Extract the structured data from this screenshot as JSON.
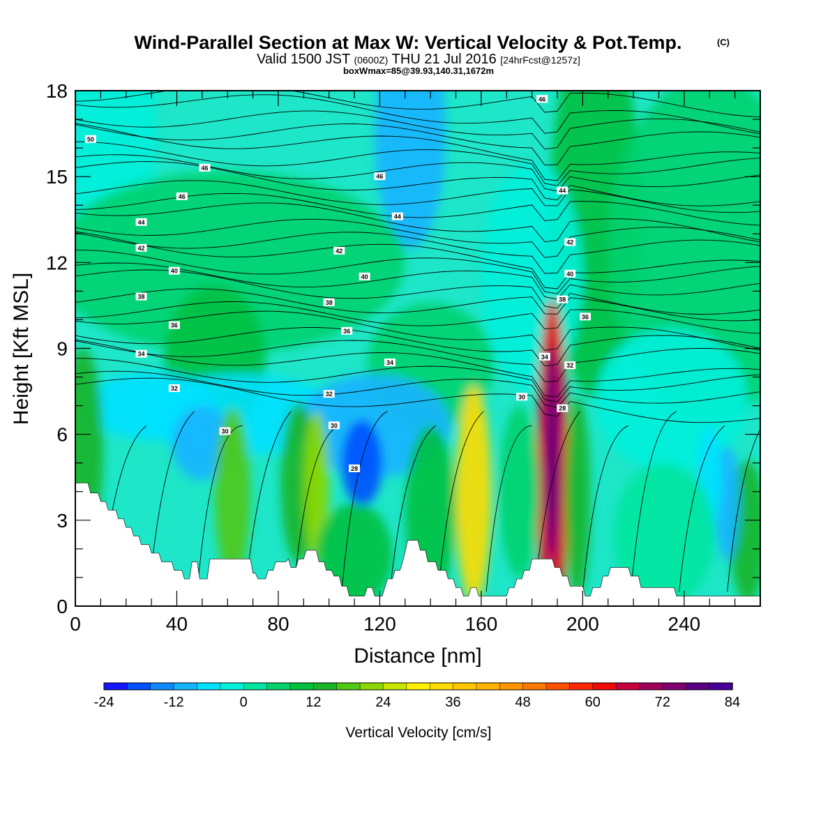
{
  "chart_data": {
    "type": "heatmap",
    "title": "Wind-Parallel Section at Max W: Vertical Velocity & Pot.Temp.",
    "title_mark": "(C)",
    "subtitle_valid_a": "Valid 1500 JST",
    "subtitle_valid_b": "(0600Z)",
    "subtitle_valid_c": "THU 21 Jul 2016",
    "subtitle_valid_d": "[24hrFcst@1257z]",
    "subtitle_box": "boxWmax=85@39.93,140.31,1672m",
    "xlabel": "Distance [nm]",
    "ylabel": "Height [Kft MSL]",
    "xlim": [
      0,
      270
    ],
    "ylim": [
      0,
      18
    ],
    "x_ticks": [
      "0",
      "40",
      "80",
      "120",
      "160",
      "200",
      "240"
    ],
    "y_ticks": [
      "0",
      "3",
      "6",
      "9",
      "12",
      "15",
      "18"
    ],
    "colorbar": {
      "title": "Vertical Velocity [cm/s]",
      "range": [
        -24,
        84
      ],
      "step": 4,
      "tick_labels": [
        "-24",
        "-12",
        "0",
        "12",
        "24",
        "36",
        "48",
        "60",
        "72",
        "84"
      ],
      "colors": [
        "#1414ff",
        "#0050ff",
        "#0f87ff",
        "#14b4ff",
        "#00e1ff",
        "#00f0dc",
        "#00e6a0",
        "#00d26e",
        "#00c040",
        "#19b428",
        "#50c814",
        "#8cd700",
        "#c8e600",
        "#fff000",
        "#ffdc00",
        "#ffc800",
        "#ffb400",
        "#ff9600",
        "#ff7800",
        "#ff5000",
        "#ff2800",
        "#f00a0a",
        "#c8003c",
        "#a0005a",
        "#82006e",
        "#5a0082",
        "#460096"
      ]
    },
    "contour_labels": [
      {
        "x": 6,
        "y": 16.3,
        "text": "50"
      },
      {
        "x": 51,
        "y": 15.3,
        "text": "46"
      },
      {
        "x": 42,
        "y": 14.3,
        "text": "46"
      },
      {
        "x": 26,
        "y": 13.4,
        "text": "44"
      },
      {
        "x": 26,
        "y": 12.5,
        "text": "42"
      },
      {
        "x": 39,
        "y": 11.7,
        "text": "40"
      },
      {
        "x": 26,
        "y": 10.8,
        "text": "38"
      },
      {
        "x": 39,
        "y": 9.8,
        "text": "36"
      },
      {
        "x": 26,
        "y": 8.8,
        "text": "34"
      },
      {
        "x": 39,
        "y": 7.6,
        "text": "32"
      },
      {
        "x": 59,
        "y": 6.1,
        "text": "30"
      },
      {
        "x": 184,
        "y": 17.7,
        "text": "46"
      },
      {
        "x": 120,
        "y": 15.0,
        "text": "46"
      },
      {
        "x": 127,
        "y": 13.6,
        "text": "44"
      },
      {
        "x": 104,
        "y": 12.4,
        "text": "42"
      },
      {
        "x": 114,
        "y": 11.5,
        "text": "40"
      },
      {
        "x": 100,
        "y": 10.6,
        "text": "38"
      },
      {
        "x": 107,
        "y": 9.6,
        "text": "36"
      },
      {
        "x": 124,
        "y": 8.5,
        "text": "34"
      },
      {
        "x": 100,
        "y": 7.4,
        "text": "32"
      },
      {
        "x": 102,
        "y": 6.3,
        "text": "30"
      },
      {
        "x": 110,
        "y": 4.8,
        "text": "28"
      },
      {
        "x": 192,
        "y": 14.5,
        "text": "44"
      },
      {
        "x": 195,
        "y": 12.7,
        "text": "42"
      },
      {
        "x": 195,
        "y": 11.6,
        "text": "40"
      },
      {
        "x": 192,
        "y": 10.7,
        "text": "38"
      },
      {
        "x": 201,
        "y": 10.1,
        "text": "36"
      },
      {
        "x": 185,
        "y": 8.7,
        "text": "34"
      },
      {
        "x": 195,
        "y": 8.4,
        "text": "32"
      },
      {
        "x": 176,
        "y": 7.3,
        "text": "30"
      },
      {
        "x": 192,
        "y": 6.9,
        "text": "28"
      }
    ],
    "terrain_nm_kft": [
      [
        0,
        4.3
      ],
      [
        5,
        4.3
      ],
      [
        6,
        3.95
      ],
      [
        9,
        3.95
      ],
      [
        10,
        3.65
      ],
      [
        12,
        3.65
      ],
      [
        13,
        3.35
      ],
      [
        16,
        3.35
      ],
      [
        17,
        3.05
      ],
      [
        19,
        3.05
      ],
      [
        20,
        2.75
      ],
      [
        22,
        2.75
      ],
      [
        23,
        2.45
      ],
      [
        25,
        2.45
      ],
      [
        26,
        2.15
      ],
      [
        29,
        2.15
      ],
      [
        30,
        1.85
      ],
      [
        33,
        1.85
      ],
      [
        34,
        1.55
      ],
      [
        38,
        1.55
      ],
      [
        39,
        1.25
      ],
      [
        42,
        1.25
      ],
      [
        43,
        0.95
      ],
      [
        45,
        0.95
      ],
      [
        46,
        1.55
      ],
      [
        48,
        1.55
      ],
      [
        49,
        0.95
      ],
      [
        52,
        0.95
      ],
      [
        53,
        1.65
      ],
      [
        69,
        1.65
      ],
      [
        70,
        1.15
      ],
      [
        71,
        1.15
      ],
      [
        72,
        0.95
      ],
      [
        75,
        0.95
      ],
      [
        76,
        1.25
      ],
      [
        78,
        1.25
      ],
      [
        79,
        1.55
      ],
      [
        83,
        1.55
      ],
      [
        84,
        1.65
      ],
      [
        85,
        1.35
      ],
      [
        87,
        1.35
      ],
      [
        88,
        1.65
      ],
      [
        90,
        1.65
      ],
      [
        91,
        1.95
      ],
      [
        95,
        1.95
      ],
      [
        96,
        1.55
      ],
      [
        98,
        1.55
      ],
      [
        99,
        1.25
      ],
      [
        101,
        1.25
      ],
      [
        102,
        1.05
      ],
      [
        104,
        1.05
      ],
      [
        105,
        0.7
      ],
      [
        107,
        0.7
      ],
      [
        108,
        0.35
      ],
      [
        114,
        0.35
      ],
      [
        115,
        0.65
      ],
      [
        117,
        0.65
      ],
      [
        118,
        0.35
      ],
      [
        121,
        0.35
      ],
      [
        122,
        0.65
      ],
      [
        123,
        0.95
      ],
      [
        125,
        0.95
      ],
      [
        126,
        1.25
      ],
      [
        128,
        1.25
      ],
      [
        129,
        1.55
      ],
      [
        130,
        1.9
      ],
      [
        131,
        2.3
      ],
      [
        135,
        2.3
      ],
      [
        136,
        1.95
      ],
      [
        138,
        1.95
      ],
      [
        139,
        1.55
      ],
      [
        142,
        1.55
      ],
      [
        143,
        1.25
      ],
      [
        146,
        1.25
      ],
      [
        147,
        0.95
      ],
      [
        149,
        0.95
      ],
      [
        150,
        0.65
      ],
      [
        152,
        0.65
      ],
      [
        153,
        0.35
      ],
      [
        155,
        0.35
      ],
      [
        156,
        0.65
      ],
      [
        158,
        0.65
      ],
      [
        159,
        0.35
      ],
      [
        170,
        0.35
      ],
      [
        171,
        0.65
      ],
      [
        173,
        0.65
      ],
      [
        174,
        0.95
      ],
      [
        176,
        0.95
      ],
      [
        177,
        1.25
      ],
      [
        179,
        1.25
      ],
      [
        180,
        1.65
      ],
      [
        188,
        1.65
      ],
      [
        189,
        1.35
      ],
      [
        191,
        1.35
      ],
      [
        192,
        1.05
      ],
      [
        194,
        1.05
      ],
      [
        195,
        0.7
      ],
      [
        200,
        0.7
      ],
      [
        201,
        0.35
      ],
      [
        203,
        0.35
      ],
      [
        204,
        0.65
      ],
      [
        207,
        0.65
      ],
      [
        208,
        1.05
      ],
      [
        210,
        1.05
      ],
      [
        211,
        1.35
      ],
      [
        218,
        1.35
      ],
      [
        219,
        1.05
      ],
      [
        222,
        1.05
      ],
      [
        223,
        0.65
      ],
      [
        236,
        0.65
      ],
      [
        237,
        0.35
      ],
      [
        270,
        0.35
      ]
    ]
  }
}
